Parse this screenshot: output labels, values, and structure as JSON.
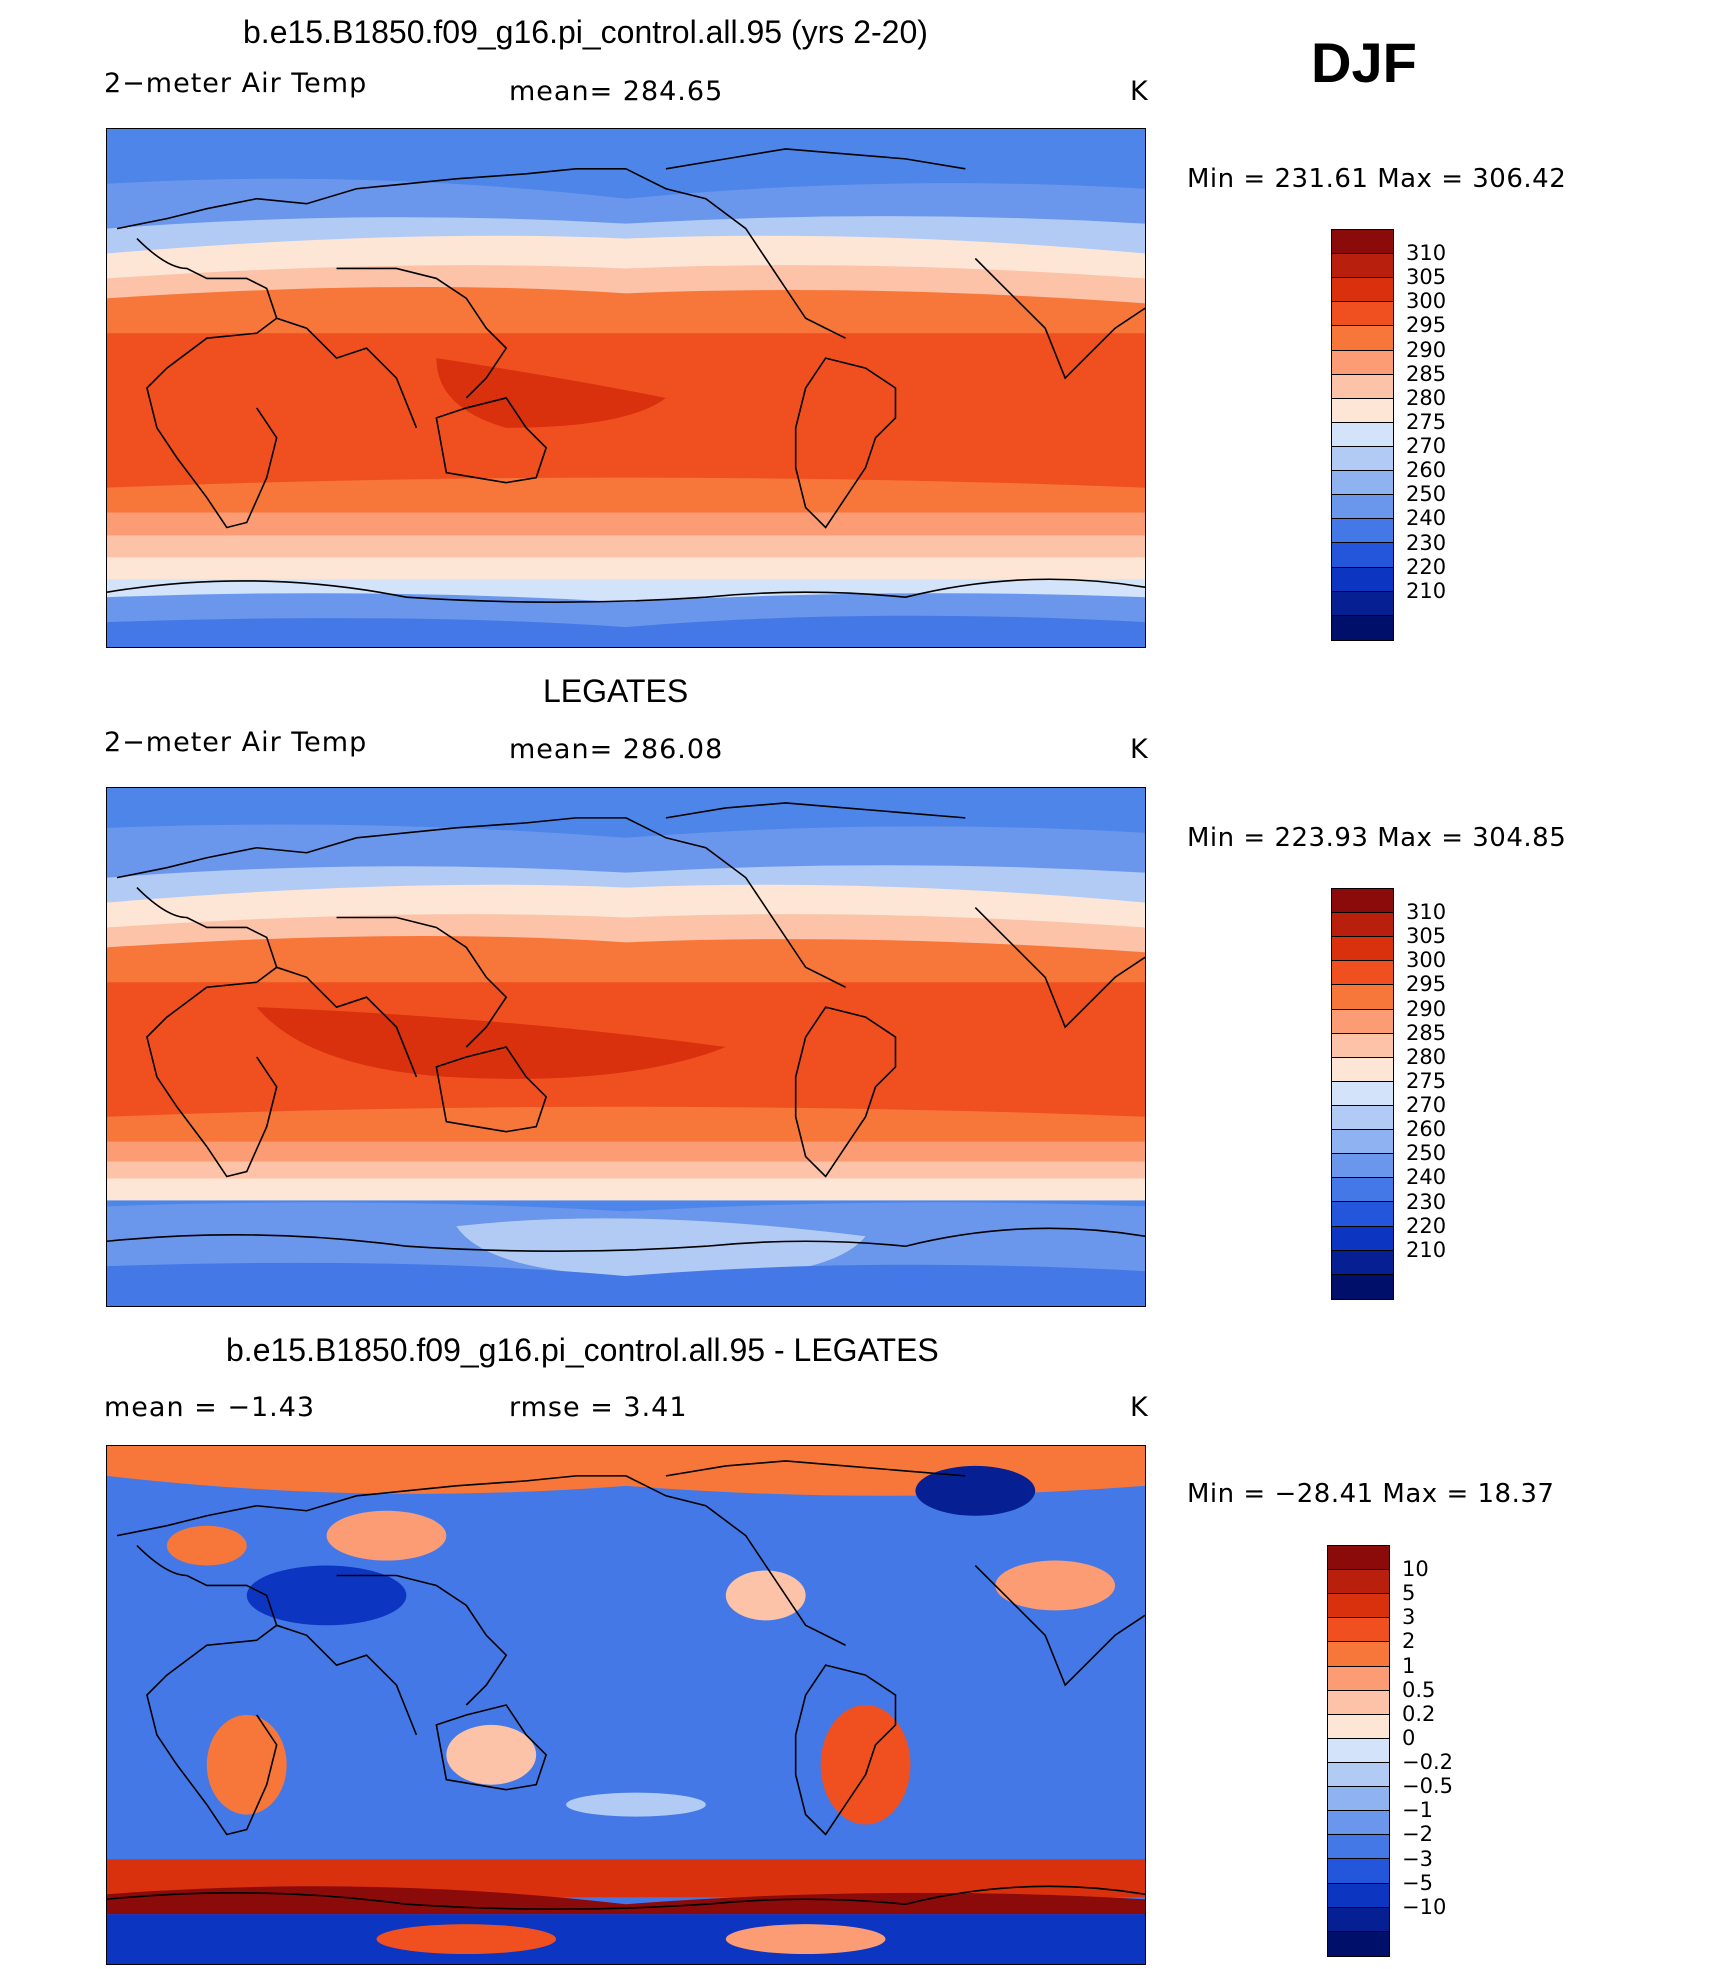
{
  "season": "DJF",
  "panels": [
    {
      "title": "b.e15.B1850.f09_g16.pi_control.all.95 (yrs 2-20)",
      "left_label": "2−meter Air Temp",
      "center_label": "mean=  284.65",
      "units": "K",
      "minmax": "Min  =  231.61  Max  =  306.42",
      "colorbar": {
        "colors": [
          "#8b0a0a",
          "#b81f0c",
          "#d9300e",
          "#f0501f",
          "#f7773a",
          "#fc9c74",
          "#fcc3a8",
          "#fde6d6",
          "#d3e3f9",
          "#b2cbf5",
          "#8fb2f0",
          "#6a97ec",
          "#4478e6",
          "#2456dc",
          "#0c36c2",
          "#061f92",
          "#00106a"
        ],
        "labels": [
          "310",
          "305",
          "300",
          "295",
          "290",
          "285",
          "280",
          "275",
          "270",
          "260",
          "250",
          "240",
          "230",
          "220",
          "210"
        ]
      }
    },
    {
      "title": "LEGATES",
      "left_label": "2−meter Air Temp",
      "center_label": "mean=  286.08",
      "units": "K",
      "minmax": "Min  =  223.93  Max  =  304.85",
      "colorbar": {
        "colors": [
          "#8b0a0a",
          "#b81f0c",
          "#d9300e",
          "#f0501f",
          "#f7773a",
          "#fc9c74",
          "#fcc3a8",
          "#fde6d6",
          "#d3e3f9",
          "#b2cbf5",
          "#8fb2f0",
          "#6a97ec",
          "#4478e6",
          "#2456dc",
          "#0c36c2",
          "#061f92",
          "#00106a"
        ],
        "labels": [
          "310",
          "305",
          "300",
          "295",
          "290",
          "285",
          "280",
          "275",
          "270",
          "260",
          "250",
          "240",
          "230",
          "220",
          "210"
        ]
      }
    },
    {
      "title": "b.e15.B1850.f09_g16.pi_control.all.95 - LEGATES",
      "left_label": "mean  =     −1.43",
      "center_label": "rmse  =      3.41",
      "units": "K",
      "minmax": "Min  =  −28.41  Max  =    18.37",
      "colorbar": {
        "colors": [
          "#8b0a0a",
          "#b81f0c",
          "#d9300e",
          "#f0501f",
          "#f7773a",
          "#fc9c74",
          "#fcc3a8",
          "#fde6d6",
          "#d3e3f9",
          "#b2cbf5",
          "#8fb2f0",
          "#6a97ec",
          "#4478e6",
          "#2456dc",
          "#0c36c2",
          "#061f92",
          "#00106a"
        ],
        "labels": [
          "10",
          "5",
          "3",
          "2",
          "1",
          "0.5",
          "0.2",
          "0",
          "−0.2",
          "−0.5",
          "−1",
          "−2",
          "−3",
          "−5",
          "−10"
        ]
      }
    }
  ]
}
